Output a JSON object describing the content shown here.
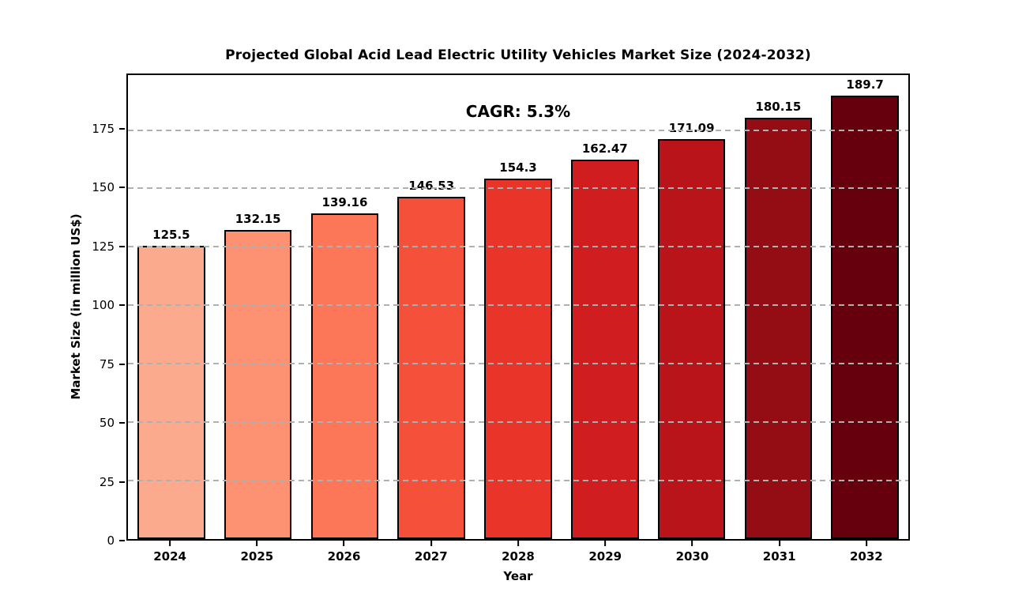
{
  "title": "Projected Global Acid Lead Electric Utility Vehicles Market Size (2024-2032)",
  "annotation": "CAGR: 5.3%",
  "colors": {
    "background": "#ffffff",
    "grid": "#b0b0b0",
    "bar_edge": "#000000",
    "text": "#000000"
  },
  "chart_data": {
    "type": "bar",
    "title": "Projected Global Acid Lead Electric Utility Vehicles Market Size (2024-2032)",
    "xlabel": "Year",
    "ylabel": "Market Size (in million US$)",
    "categories": [
      "2024",
      "2025",
      "2026",
      "2027",
      "2028",
      "2029",
      "2030",
      "2031",
      "2032"
    ],
    "values": [
      125.5,
      132.15,
      139.16,
      146.53,
      154.3,
      162.47,
      171.09,
      180.15,
      189.7
    ],
    "bar_colors": [
      "#fcaa8e",
      "#fc9272",
      "#fb7757",
      "#f4503a",
      "#e93529",
      "#d01d1f",
      "#b81419",
      "#940d14",
      "#67000d"
    ],
    "annotation": "CAGR: 5.3%",
    "ylim": [
      0,
      198.5
    ],
    "yticks": [
      0,
      25,
      50,
      75,
      100,
      125,
      150,
      175
    ],
    "grid": "horizontal dashed, drawn above bars",
    "legend": "none"
  }
}
